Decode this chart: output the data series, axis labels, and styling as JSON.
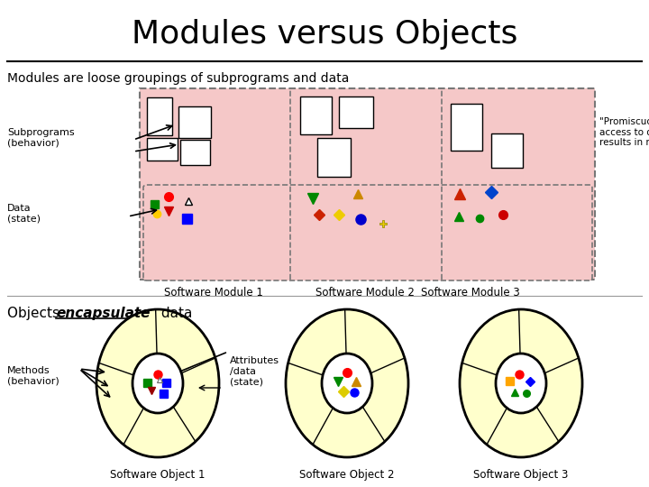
{
  "title": "Modules versus Objects",
  "title_fontsize": 26,
  "bg_color": "#ffffff",
  "section1_label": "Modules are loose groupings of subprograms and data",
  "promiscuous_text": "\"Promiscuous\"\naccess to data often\nresults in misuse",
  "subprograms_label": "Subprograms\n(behavior)",
  "data_label": "Data\n(state)",
  "methods_label": "Methods\n(behavior)",
  "attributes_label": "Attributes\n/data\n(state)",
  "module_labels": [
    "Software Module 1",
    "Software Module 2",
    "Software Module 3"
  ],
  "object_labels": [
    "Software Object 1",
    "Software Object 2",
    "Software Object 3"
  ],
  "pink_bg": "#f5c8c8",
  "yellow_fill": "#ffffcc",
  "gray_dash": "#888888"
}
